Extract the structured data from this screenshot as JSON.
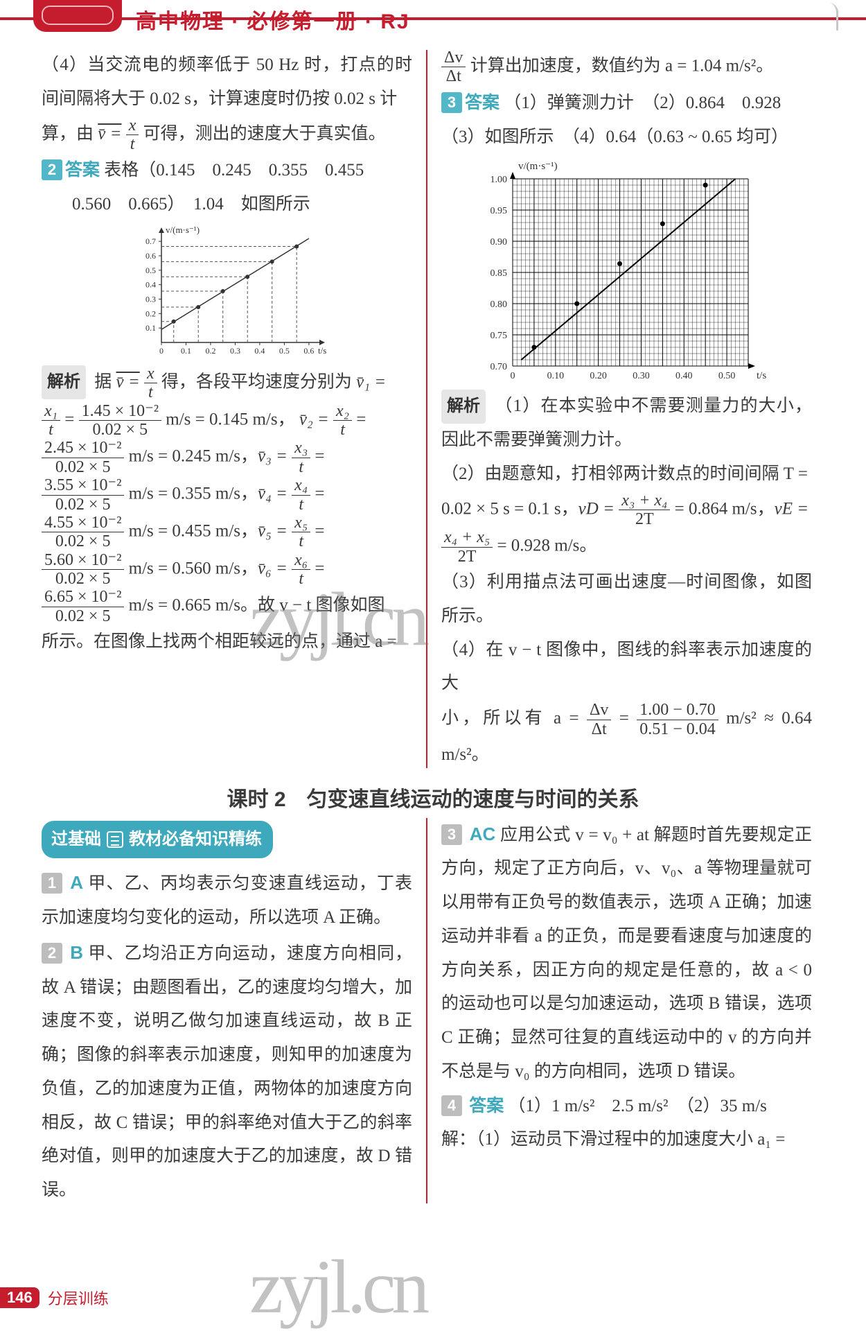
{
  "header": {
    "title": "高中物理 · 必修第一册 · RJ"
  },
  "left": {
    "p4a": "（4）当交流电的频率低于 50 Hz 时，打点的时间间隔将大于 0.02 s，计算速度时仍按 0.02 s 计",
    "p4b_pre": "算，由",
    "p4b_eq_lhs": "v̄ =",
    "p4b_frac_n": "x",
    "p4b_frac_d": "t",
    "p4b_post": "可得，测出的速度大于真实值。",
    "q2_ans_label": "答案",
    "q2_ans_vals": "表格（0.145　0.245　0.355　0.455",
    "q2_ans_vals2": "0.560　0.665）　1.04　如图所示",
    "chart_small": {
      "ylabel": "v/(m·s⁻¹)",
      "xlabel": "t/s",
      "xticks": [
        "0",
        "0.1",
        "0.2",
        "0.3",
        "0.4",
        "0.5",
        "0.6"
      ],
      "yticks": [
        "0.1",
        "0.2",
        "0.3",
        "0.4",
        "0.5",
        "0.6",
        "0.7"
      ],
      "points": [
        [
          0.05,
          0.145
        ],
        [
          0.15,
          0.245
        ],
        [
          0.25,
          0.355
        ],
        [
          0.35,
          0.455
        ],
        [
          0.45,
          0.56
        ],
        [
          0.55,
          0.665
        ]
      ],
      "axis_color": "#333",
      "point_color": "#333",
      "line_color": "#333",
      "dash_color": "#555",
      "xlim": [
        0,
        0.62
      ],
      "ylim": [
        0,
        0.72
      ]
    },
    "jiexi": "解析",
    "jiexi_line_pre": "据",
    "jiexi_eq_lhs": "v̄ =",
    "jiexi_frac_n": "x",
    "jiexi_frac_d": "t",
    "jiexi_line_post": "得，各段平均速度分别为",
    "jiexi_line_tail": " v̄₁ =",
    "r1_l_n": "x₁",
    "r1_l_d": "t",
    "r1_mid": "=",
    "r1_r_n": "1.45 × 10⁻²",
    "r1_r_d": "0.02 × 5",
    "r1_unit": " m/s = 0.145 m/s，",
    "r1_tail_lhs": "v̄₂ =",
    "r1_tail_n": "x₂",
    "r1_tail_d": "t",
    "r1_tail_eq": " =",
    "r2_n": "2.45 × 10⁻²",
    "r2_d": "0.02 × 5",
    "r2_txt": " m/s = 0.245 m/s，",
    "r2_lhs": "v̄₃ = ",
    "r2_tn": "x₃",
    "r2_td": "t",
    "r2_eq": " =",
    "r3_n": "3.55 × 10⁻²",
    "r3_d": "0.02 × 5",
    "r3_txt": " m/s = 0.355 m/s，",
    "r3_lhs": "v̄₄ = ",
    "r3_tn": "x₄",
    "r3_td": "t",
    "r3_eq": " =",
    "r4_n": "4.55 × 10⁻²",
    "r4_d": "0.02 × 5",
    "r4_txt": " m/s = 0.455 m/s，",
    "r4_lhs": "v̄₅ = ",
    "r4_tn": "x₅",
    "r4_td": "t",
    "r4_eq": " =",
    "r5_n": "5.60 × 10⁻²",
    "r5_d": "0.02 × 5",
    "r5_txt": " m/s = 0.560 m/s，",
    "r5_lhs": "v̄₆ = ",
    "r5_tn": "x₆",
    "r5_td": "t",
    "r5_eq": " =",
    "r6_n": "6.65 × 10⁻²",
    "r6_d": "0.02 × 5",
    "r6_txt": " m/s = 0.665 m/s。故 v − t 图像如图",
    "tail": "所示。在图像上找两个相距较远的点，通过 a ="
  },
  "right": {
    "top_pre": "",
    "top_frac_n": "Δv",
    "top_frac_d": "Δt",
    "top_post": "计算出加速度，数值约为 a = 1.04 m/s²。",
    "q3_ans_label": "答案",
    "q3_line1": "（1）弹簧测力计　（2）0.864　0.928",
    "q3_line2": "（3）如图所示　（4）0.64（0.63 ~ 0.65 均可）",
    "chart_big": {
      "ylabel": "v/(m·s⁻¹)",
      "xlabel": "t/s",
      "xticks": [
        "0",
        "0.10",
        "0.20",
        "0.30",
        "0.40",
        "0.50"
      ],
      "yticks": [
        "0.70",
        "0.75",
        "0.80",
        "0.85",
        "0.90",
        "0.95",
        "1.00"
      ],
      "grid_color": "#000000",
      "line_color": "#000000",
      "point_color": "#000000",
      "xlim": [
        0,
        0.55
      ],
      "ylim": [
        0.7,
        1.0
      ],
      "points": [
        [
          0.05,
          0.73
        ],
        [
          0.15,
          0.8
        ],
        [
          0.25,
          0.864
        ],
        [
          0.35,
          0.928
        ],
        [
          0.45,
          0.99
        ]
      ]
    },
    "jiexi": "解析",
    "e1": "（1）在本实验中不需要测量力的大小，因此不需要弹簧测力计。",
    "e2a": "（2）由题意知，打相邻两计数点的时间间隔 T =",
    "e2b_pre": "0.02 × 5 s = 0.1 s，",
    "e2b_vd": "vD = ",
    "e2b_fn": "x₃ + x₄",
    "e2b_fd": "2T",
    "e2b_mid": " = 0.864 m/s，",
    "e2b_ve": "vE =",
    "e2c_fn": "x₄ + x₅",
    "e2c_fd": "2T",
    "e2c_txt": " = 0.928 m/s。",
    "e3": "（3）利用描点法可画出速度—时间图像，如图所示。",
    "e4a": "（4）在 v − t 图像中，图线的斜率表示加速度的大",
    "e4b_pre": "小，所以有 a = ",
    "e4b_f1n": "Δv",
    "e4b_f1d": "Δt",
    "e4b_eq": " = ",
    "e4b_f2n": "1.00 − 0.70",
    "e4b_f2d": "0.51 − 0.04",
    "e4b_post": " m/s² ≈ 0.64 m/s²。"
  },
  "section2": {
    "title": "课时 2　匀变速直线运动的速度与时间的关系"
  },
  "lower_left": {
    "pill_a": "过基础",
    "pill_b": "教材必备知识精练",
    "q1_letter": "A",
    "q1": "甲、乙、丙均表示匀变速直线运动，丁表示加速度均匀变化的运动，所以选项 A 正确。",
    "q2_letter": "B",
    "q2": "甲、乙均沿正方向运动，速度方向相同，故 A 错误；由题图看出，乙的速度均匀增大，加速度不变，说明乙做匀加速直线运动，故 B 正确；图像的斜率表示加速度，则知甲的加速度为负值，乙的加速度为正值，两物体的加速度方向相反，故 C 错误；甲的斜率绝对值大于乙的斜率绝对值，则甲的加速度大于乙的加速度，故 D 错误。"
  },
  "lower_right": {
    "q3_letter": "AC",
    "q3": "应用公式 v = v₀ + at 解题时首先要规定正方向，规定了正方向后，v、v₀、a 等物理量就可以用带有正负号的数值表示，选项 A 正确；加速运动并非看 a 的正负，而是要看速度与加速度的方向关系，因正方向的规定是任意的，故 a < 0 的运动也可以是匀加速运动，选项 B 错误，选项 C 正确；显然可往复的直线运动中的 v 的方向并不总是与 v₀ 的方向相同，选项 D 错误。",
    "q4_ans_label": "答案",
    "q4_line": "（1）1 m/s²　2.5 m/s²　（2）35 m/s",
    "q4_jie": "解：（1）运动员下滑过程中的加速度大小 a₁ ="
  },
  "footer": {
    "page": "146",
    "text": "分层训练"
  },
  "watermark": "zyjl.cn"
}
